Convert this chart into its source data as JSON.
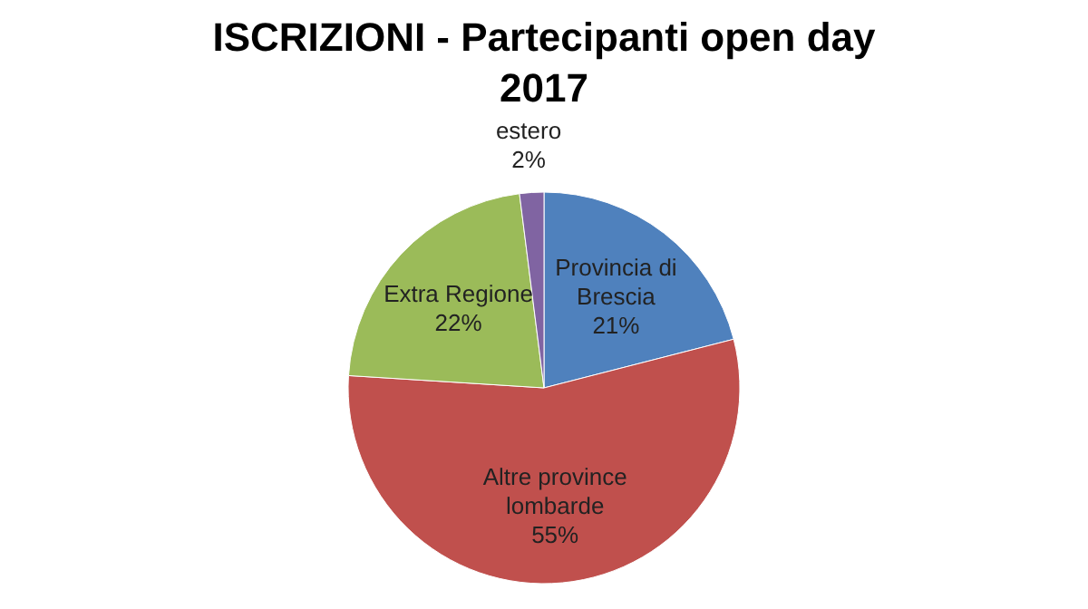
{
  "chart_data": {
    "type": "pie",
    "title": "ISCRIZIONI - Partecipanti open day 2017",
    "categories": [
      "Provincia di Brescia",
      "Altre province lombarde",
      "Extra Regione",
      "estero"
    ],
    "values": [
      21,
      55,
      22,
      2
    ],
    "value_labels": [
      "21%",
      "55%",
      "22%",
      "2%"
    ],
    "colors": [
      "#4f81bd",
      "#c0504d",
      "#9bbb59",
      "#8064a2"
    ]
  }
}
